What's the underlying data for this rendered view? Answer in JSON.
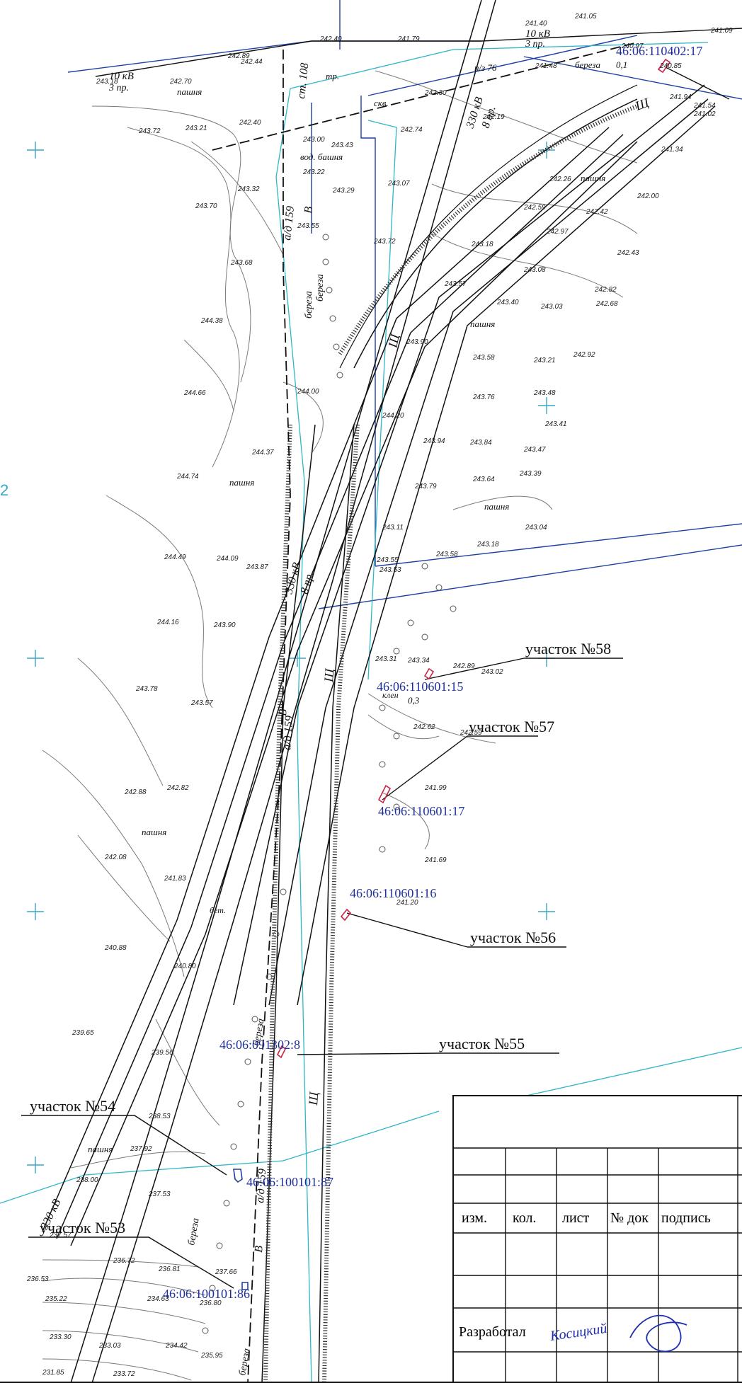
{
  "parcels": [
    {
      "label": "участок №58",
      "cadastral": "46:06:110601:15"
    },
    {
      "label": "участок №57",
      "cadastral": "46:06:110601:17"
    },
    {
      "label": "участок №56",
      "cadastral": "46:06:110601:16"
    },
    {
      "label": "участок №55",
      "cadastral": "46:06:091302:8"
    },
    {
      "label": "участок №54",
      "cadastral": "46:06:100101:87"
    },
    {
      "label": "участок №53",
      "cadastral": "46:06:100101:86"
    }
  ],
  "top_cadastral": "46:06:110402:17",
  "map_labels": {
    "pashnya": "пашня",
    "line_10kv": "10 кВ",
    "three_wires": "3 пр.",
    "line_330kv": "330 кВ",
    "eight_wires": "8 пр.",
    "post_108": "ст. 108",
    "tr": "тр.",
    "skv": "скв.",
    "bath": "вод. башня",
    "birch": "береза",
    "maple": "клен",
    "road_sch": "Щ",
    "road_b": "В",
    "ad159": "а/д 159",
    "n376": "n/з 76",
    "bet": "бет.",
    "birch_val1": "0,1",
    "klen_val": "0,3",
    "marg_left": "2"
  },
  "elevations": [
    "243.18",
    "242.70",
    "242.89",
    "242.44",
    "242.40",
    "241.79",
    "241.40",
    "241.05",
    "241.09",
    "243.72",
    "243.21",
    "242.40",
    "243.00",
    "243.43",
    "243.22",
    "242.74",
    "242.30",
    "242.19",
    "243.32",
    "243.29",
    "243.07",
    "242.26",
    "242.42",
    "242.00",
    "243.70",
    "243.55",
    "242.59",
    "242.97",
    "242.43",
    "243.68",
    "243.72",
    "243.18",
    "243.08",
    "242.82",
    "244.38",
    "243.57",
    "243.40",
    "243.03",
    "242.68",
    "243.90",
    "243.58",
    "243.21",
    "242.92",
    "244.66",
    "244.00",
    "243.76",
    "243.48",
    "243.41",
    "244.37",
    "244.20",
    "243.94",
    "243.84",
    "243.47",
    "244.74",
    "243.79",
    "243.64",
    "243.39",
    "244.49",
    "244.09",
    "243.87",
    "243.11",
    "243.55",
    "243.53",
    "243.58",
    "243.18",
    "243.04",
    "244.16",
    "243.90",
    "243.31",
    "243.34",
    "242.89",
    "243.02",
    "243.78",
    "243.57",
    "242.62",
    "242.59",
    "242.88",
    "242.82",
    "241.99",
    "242.08",
    "241.83",
    "241.69",
    "241.20",
    "240.88",
    "240.80",
    "239.65",
    "239.56",
    "238.53",
    "237.92",
    "238.00",
    "237.53",
    "237.57",
    "236.72",
    "236.81",
    "237.66",
    "236.53",
    "235.22",
    "234.63",
    "236.80",
    "233.30",
    "233.03",
    "234.42",
    "235.95",
    "231.85",
    "233.72",
    "241.34",
    "241.54",
    "241.02",
    "241.94",
    "241.48",
    "240.97",
    "240.85"
  ],
  "stamp": {
    "headers": [
      "изм.",
      "кол.",
      "лист",
      "№ док",
      "подпись"
    ],
    "developed_label": "Разработал",
    "signature": "Косицкий"
  },
  "colors": {
    "blue_line": "#1f3fa3",
    "cyan_line": "#2fb6c9",
    "contour": "#6b6b6b",
    "contour_label": "#b8a050",
    "parcel_marker": "#cc2244",
    "plus_mark": "#3aa7c8"
  }
}
